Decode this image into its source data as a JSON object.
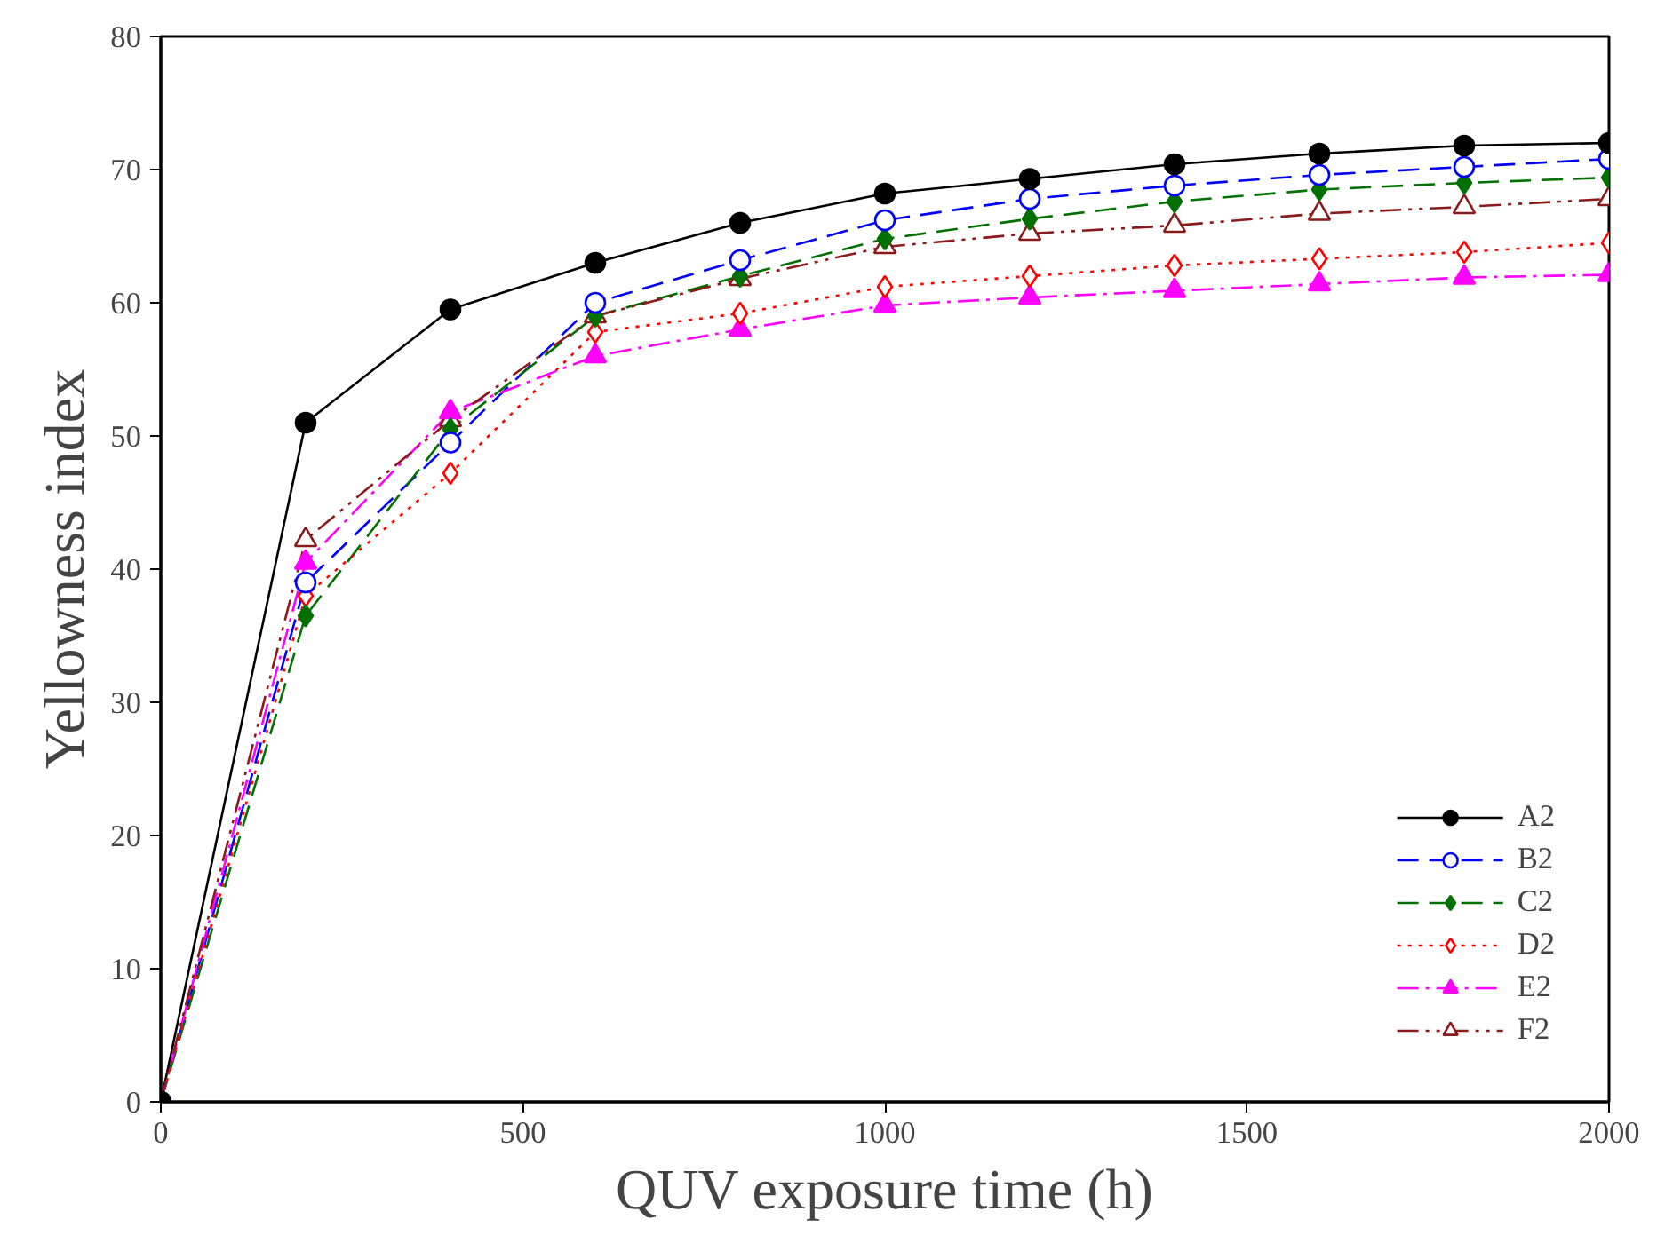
{
  "chart_data": {
    "type": "line",
    "xlabel": "QUV exposure time (h)",
    "ylabel": "Yellowness index",
    "x": [
      0,
      200,
      400,
      600,
      800,
      1000,
      1200,
      1400,
      1600,
      1800,
      2000
    ],
    "xlim": [
      0,
      2000
    ],
    "xticks": [
      0,
      500,
      1000,
      1500,
      2000
    ],
    "ylim": [
      0,
      80
    ],
    "yticks": [
      0,
      10,
      20,
      30,
      40,
      50,
      60,
      70,
      80
    ],
    "grid": false,
    "legend": "bottom right",
    "series": [
      {
        "name": "A2",
        "color": "#000000",
        "marker": "circle",
        "line_style": "solid",
        "values": [
          0,
          51,
          59.5,
          63,
          66,
          68.2,
          69.3,
          70.4,
          71.2,
          71.8,
          72
        ]
      },
      {
        "name": "B2",
        "color": "#0000ff",
        "marker": "circle_open",
        "line_style": "dashed",
        "values": [
          0,
          39,
          49.5,
          60,
          63.2,
          66.2,
          67.8,
          68.8,
          69.6,
          70.2,
          70.8
        ]
      },
      {
        "name": "C2",
        "color": "#007000",
        "marker": "diamond",
        "line_style": "dashed",
        "values": [
          0,
          36.5,
          50.5,
          59,
          62,
          64.8,
          66.3,
          67.6,
          68.5,
          69,
          69.4
        ]
      },
      {
        "name": "D2",
        "color": "#ff0000",
        "marker": "diamond_open",
        "line_style": "dotted",
        "values": [
          0,
          38,
          47.2,
          57.8,
          59.2,
          61.2,
          62,
          62.8,
          63.3,
          63.8,
          64.5
        ]
      },
      {
        "name": "E2",
        "color": "#ff00ff",
        "marker": "triangle",
        "line_style": "dashdot",
        "values": [
          0,
          40.5,
          51.8,
          56,
          58,
          59.8,
          60.4,
          60.9,
          61.4,
          61.9,
          62.1
        ]
      },
      {
        "name": "F2",
        "color": "#8b1a1a",
        "marker": "triangle_open",
        "line_style": "dashdotdot",
        "values": [
          0,
          42.2,
          51.2,
          59,
          61.8,
          64.2,
          65.2,
          65.8,
          66.7,
          67.2,
          67.8
        ]
      }
    ]
  }
}
